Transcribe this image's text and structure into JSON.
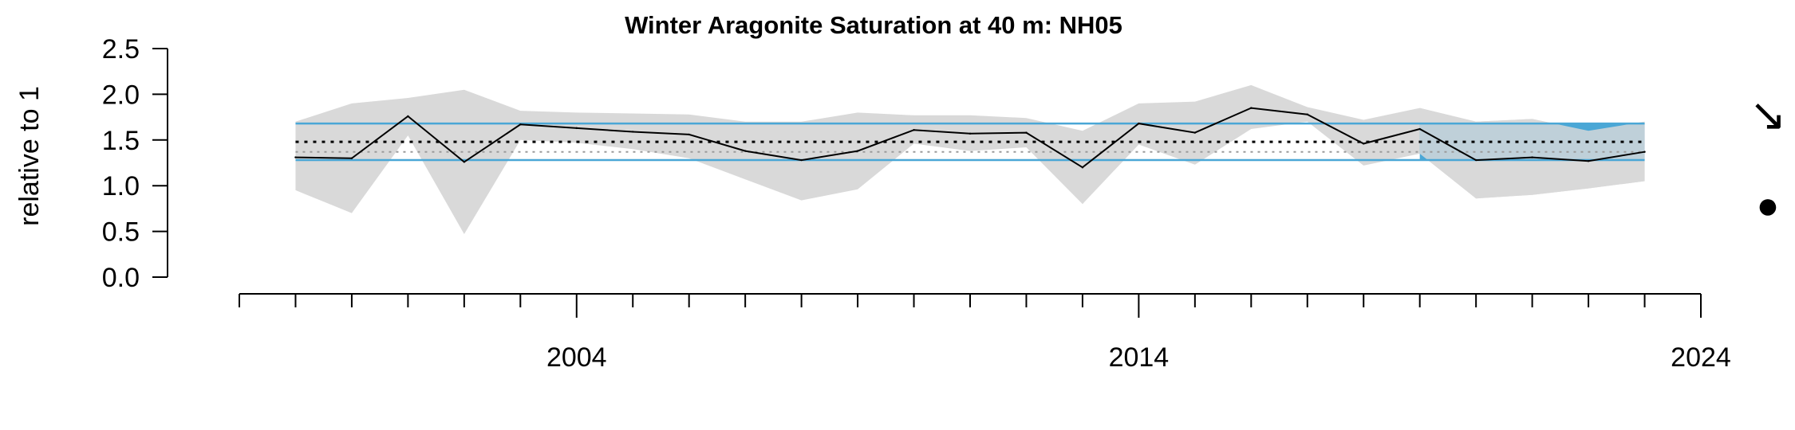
{
  "chart_data": {
    "type": "line",
    "title": "Winter Aragonite Saturation at 40 m: NH05",
    "ylabel": "relative to 1",
    "xlabel": "",
    "ylim": [
      0,
      2.5
    ],
    "yticks": [
      "0.0",
      "0.5",
      "1.0",
      "1.5",
      "2.0",
      "2.5"
    ],
    "xlim": [
      1998,
      2024
    ],
    "xticks_major": [
      "2004",
      "2014",
      "2024"
    ],
    "xticks_minor_every": 1,
    "series": [
      {
        "values_x": [
          1999,
          2000,
          2001,
          2002,
          2003,
          2004,
          2005,
          2006,
          2007,
          2008,
          2009,
          2010,
          2011,
          2012,
          2013,
          2014,
          2015,
          2016,
          2017,
          2018,
          2019,
          2020,
          2021,
          2022,
          2023
        ],
        "values_y": [
          1.31,
          1.3,
          1.76,
          1.26,
          1.67,
          1.63,
          1.59,
          1.56,
          1.38,
          1.28,
          1.38,
          1.61,
          1.57,
          1.58,
          1.2,
          1.68,
          1.58,
          1.85,
          1.78,
          1.46,
          1.62,
          1.28,
          1.31,
          1.27,
          1.37
        ],
        "upper": [
          1.7,
          1.9,
          1.96,
          2.05,
          1.82,
          1.8,
          1.79,
          1.78,
          1.7,
          1.7,
          1.8,
          1.77,
          1.77,
          1.74,
          1.6,
          1.9,
          1.92,
          2.1,
          1.86,
          1.72,
          1.85,
          1.7,
          1.73,
          1.6,
          1.7
        ],
        "lower": [
          0.95,
          0.7,
          1.55,
          0.47,
          1.5,
          1.47,
          1.4,
          1.3,
          1.07,
          0.84,
          0.96,
          1.46,
          1.38,
          1.42,
          0.8,
          1.45,
          1.23,
          1.62,
          1.7,
          1.22,
          1.35,
          0.86,
          0.9,
          0.97,
          1.05
        ]
      }
    ],
    "mean": 1.48,
    "sd_band": [
      1.28,
      1.68
    ],
    "recent_window": [
      2019,
      2023
    ],
    "recent_mean": 1.37,
    "trend_symbol": "↘",
    "status_symbol": "●",
    "colors": {
      "line": "#000000",
      "envelope": "#d9d9d9",
      "sd_lines": "#4aa7d6",
      "recent_fill": "#4aa7d6",
      "mean_dash": "#000000",
      "recent_mean_dash": "#9a9a9a"
    }
  }
}
